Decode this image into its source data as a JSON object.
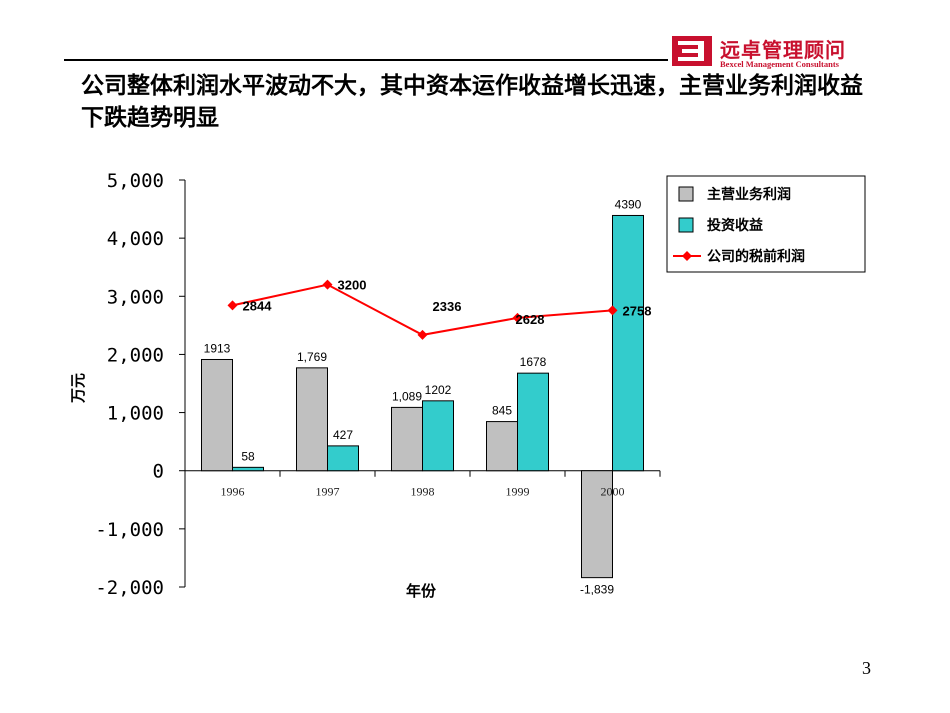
{
  "header": {
    "logo_cn": "远卓管理顾问",
    "logo_en": "Bexcel Management Consultants",
    "headline": "公司整体利润水平波动不大，其中资本运作收益增长迅速，主营业务利润收益下跌趋势明显",
    "brand_color": "#c8102e"
  },
  "page_number": "3",
  "chart_data": {
    "type": "bar",
    "categories": [
      "1996",
      "1997",
      "1998",
      "1999",
      "2000"
    ],
    "xlabel": "年份",
    "ylabel": "万元",
    "ylim": [
      -2000,
      5000
    ],
    "yticks": [
      5000,
      4000,
      3000,
      2000,
      1000,
      0,
      -1000,
      -2000
    ],
    "ytick_labels": [
      "5,000",
      "4,000",
      "3,000",
      "2,000",
      "1,000",
      "0",
      "-1,000",
      "-2,000"
    ],
    "legend_position": "top-right",
    "grid": false,
    "series": [
      {
        "name": "主营业务利润",
        "kind": "bar",
        "color": "#c0c0c0",
        "values": [
          1913,
          1769,
          1089,
          845,
          -1839
        ],
        "labels": [
          "1913",
          "1,769",
          "1,089",
          "845",
          "-1,839"
        ]
      },
      {
        "name": "投资收益",
        "kind": "bar",
        "color": "#33cccc",
        "values": [
          58,
          427,
          1202,
          1678,
          4390
        ],
        "labels": [
          "58",
          "427",
          "1202",
          "1678",
          "4390"
        ]
      },
      {
        "name": "公司的税前利润",
        "kind": "line",
        "color": "#ff0000",
        "values": [
          2844,
          3200,
          2336,
          2628,
          2758
        ],
        "labels": [
          "2844",
          "3200",
          "2336",
          "2628",
          "2758"
        ]
      }
    ]
  }
}
